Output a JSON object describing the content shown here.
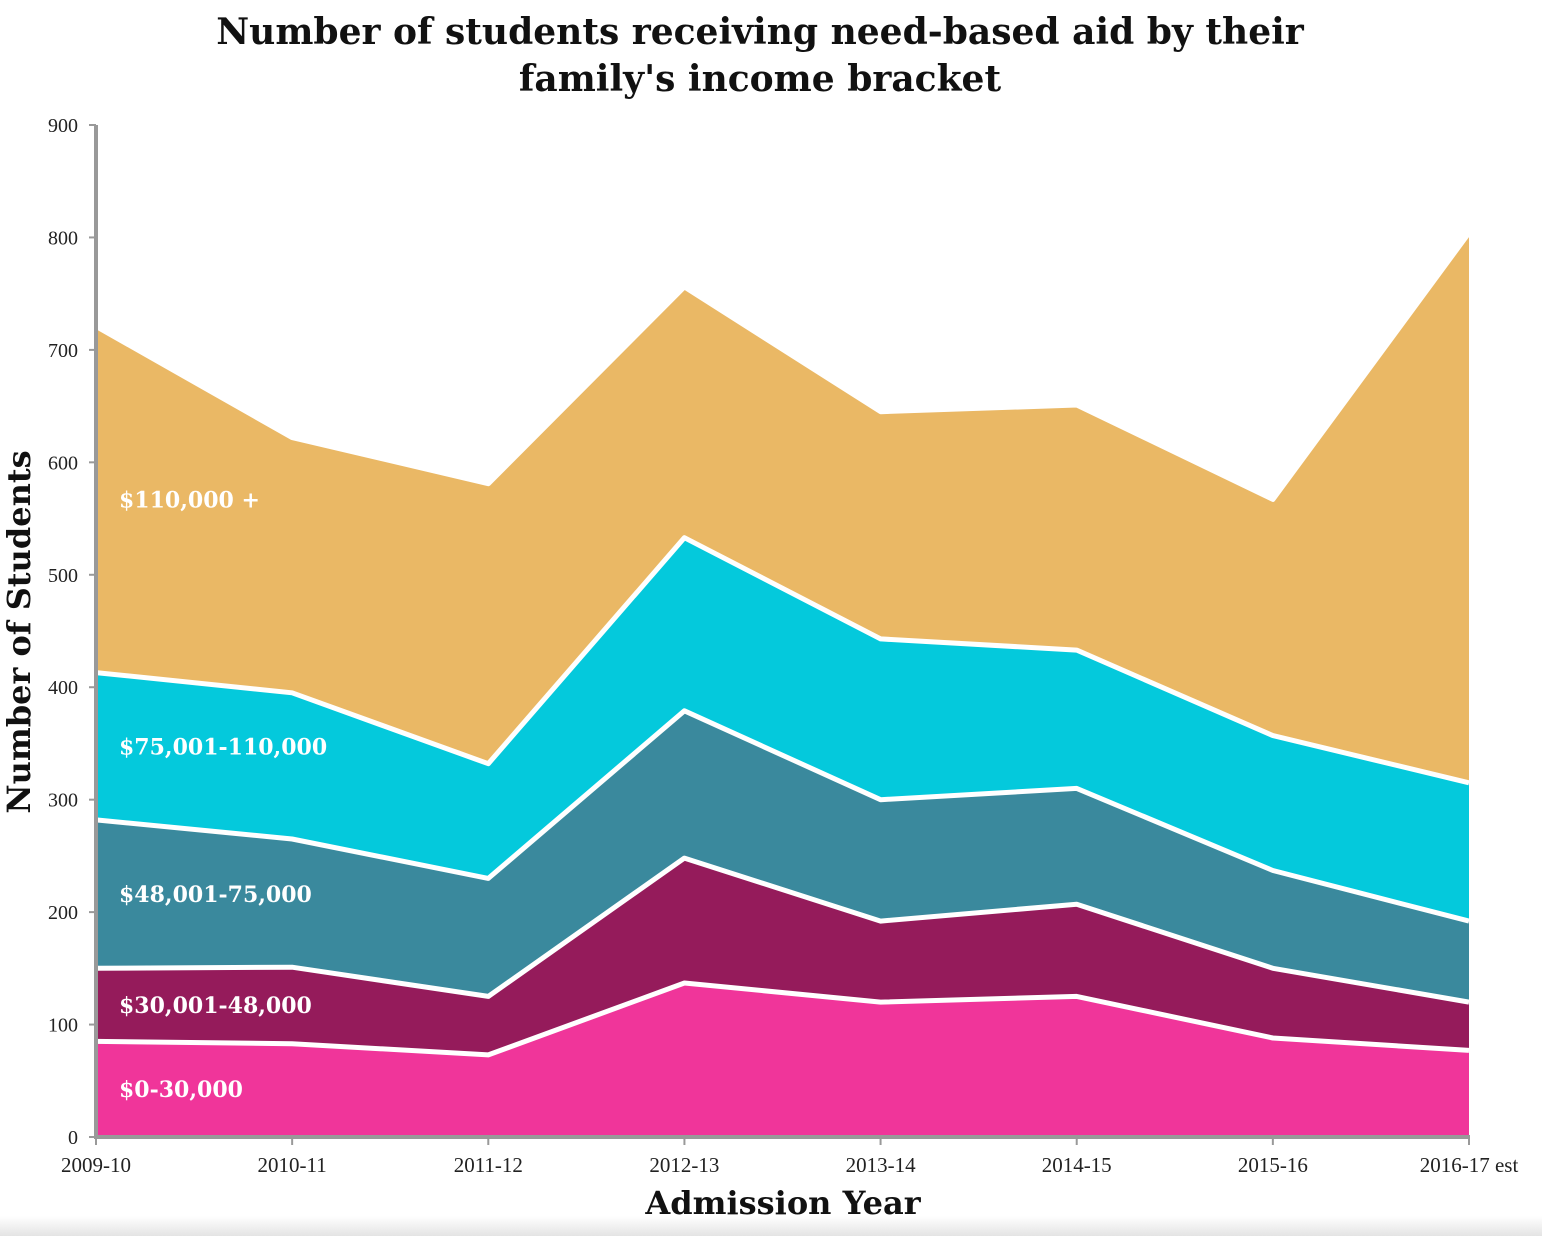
{
  "chart_data": {
    "type": "area",
    "stacked": true,
    "title": [
      "Number of students receiving need-based aid by their",
      "family's income bracket"
    ],
    "xlabel": "Admission Year",
    "ylabel": "Number of Students",
    "categories": [
      "2009-10",
      "2010-11",
      "2011-12",
      "2012-13",
      "2013-14",
      "2014-15",
      "2015-16",
      "2016-17 est"
    ],
    "ylim": [
      0,
      900
    ],
    "yticks": [
      0,
      100,
      200,
      300,
      400,
      500,
      600,
      700,
      800,
      900
    ],
    "grid": false,
    "legend": "inline-left",
    "series": [
      {
        "name": "$0-30,000",
        "color": "#F0359A",
        "values": [
          85,
          83,
          73,
          137,
          120,
          125,
          88,
          77
        ]
      },
      {
        "name": "$30,001-48,000",
        "color": "#951B5B",
        "values": [
          65,
          68,
          52,
          111,
          72,
          82,
          62,
          43
        ]
      },
      {
        "name": "$48,001-75,000",
        "color": "#3A899D",
        "values": [
          132,
          114,
          105,
          131,
          108,
          103,
          87,
          72
        ]
      },
      {
        "name": "$75,001-110,000",
        "color": "#04C9DC",
        "values": [
          131,
          130,
          102,
          154,
          143,
          123,
          120,
          123
        ]
      },
      {
        "name": "$110,000 +",
        "color": "#EAB865",
        "values": [
          308,
          227,
          249,
          223,
          202,
          218,
          210,
          489
        ]
      }
    ]
  }
}
